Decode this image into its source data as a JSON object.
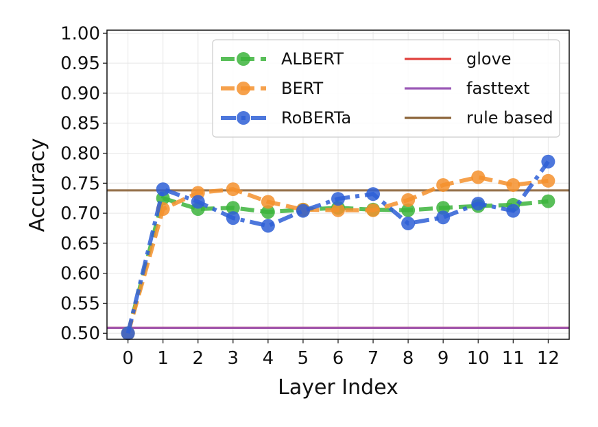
{
  "chart_data": {
    "type": "line",
    "xlabel": "Layer Index",
    "ylabel": "Accuracy",
    "x": [
      0,
      1,
      2,
      3,
      4,
      5,
      6,
      7,
      8,
      9,
      10,
      11,
      12
    ],
    "xlim": [
      -0.6,
      12.6
    ],
    "ylim": [
      0.49,
      1.005
    ],
    "yticks": [
      0.5,
      0.55,
      0.6,
      0.65,
      0.7,
      0.75,
      0.8,
      0.85,
      0.9,
      0.95,
      1.0
    ],
    "ytick_labels": [
      "0.50",
      "0.55",
      "0.60",
      "0.65",
      "0.70",
      "0.75",
      "0.80",
      "0.85",
      "0.90",
      "0.95",
      "1.00"
    ],
    "xtick_labels": [
      "0",
      "1",
      "2",
      "3",
      "4",
      "5",
      "6",
      "7",
      "8",
      "9",
      "10",
      "11",
      "12"
    ],
    "grid": true,
    "legend_position": "top-right",
    "series": [
      {
        "name": "ALBERT",
        "color": "#3cb43c",
        "style": "dashed-marker",
        "values": [
          0.5,
          0.725,
          0.707,
          0.709,
          0.702,
          0.706,
          0.709,
          0.706,
          0.705,
          0.709,
          0.712,
          0.714,
          0.72
        ]
      },
      {
        "name": "BERT",
        "color": "#f5912d",
        "style": "dashed-marker",
        "values": [
          0.5,
          0.707,
          0.734,
          0.74,
          0.719,
          0.706,
          0.705,
          0.705,
          0.722,
          0.747,
          0.76,
          0.747,
          0.754
        ]
      },
      {
        "name": "RoBERTa",
        "color": "#2e5fd6",
        "style": "dashdot-marker",
        "values": [
          0.5,
          0.74,
          0.719,
          0.692,
          0.679,
          0.704,
          0.724,
          0.732,
          0.683,
          0.693,
          0.716,
          0.704,
          0.786
        ]
      }
    ],
    "baselines": [
      {
        "name": "glove",
        "color": "#e0403c",
        "value": 0.509
      },
      {
        "name": "fasttext",
        "color": "#9b59b6",
        "value": 0.509
      },
      {
        "name": "rule based",
        "color": "#8b6338",
        "value": 0.738
      }
    ]
  }
}
